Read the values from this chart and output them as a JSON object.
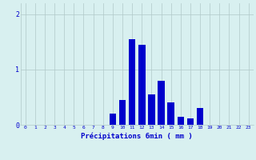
{
  "hours": [
    0,
    1,
    2,
    3,
    4,
    5,
    6,
    7,
    8,
    9,
    10,
    11,
    12,
    13,
    14,
    15,
    16,
    17,
    18,
    19,
    20,
    21,
    22,
    23
  ],
  "values": [
    0.0,
    0.0,
    0.0,
    0.0,
    0.0,
    0.0,
    0.0,
    0.0,
    0.0,
    0.2,
    0.45,
    1.55,
    1.45,
    0.55,
    0.8,
    0.4,
    0.15,
    0.12,
    0.3,
    0.0,
    0.0,
    0.0,
    0.0,
    0.0
  ],
  "bar_color": "#0000cc",
  "bg_color": "#d8f0f0",
  "grid_color": "#b0c8c8",
  "axis_color": "#0000cc",
  "xlabel": "Précipitations 6min ( mm )",
  "ylim": [
    0,
    2.2
  ],
  "yticks": [
    0,
    1,
    2
  ],
  "xlim": [
    -0.5,
    23.5
  ]
}
